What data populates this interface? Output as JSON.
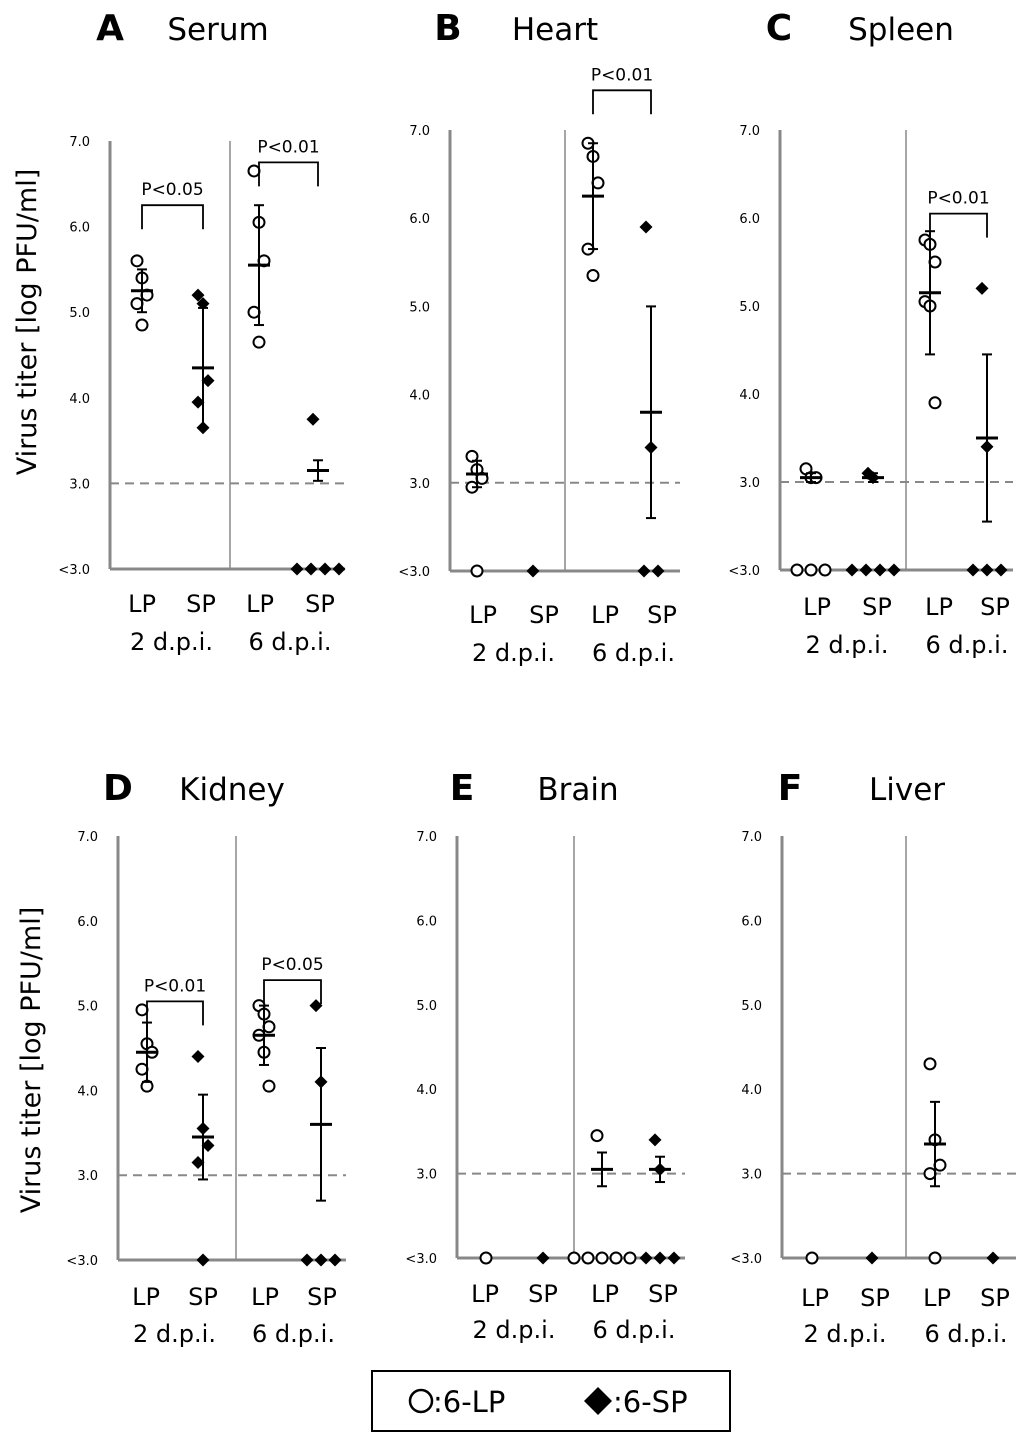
{
  "figure": {
    "y_axis_label": "Virus titer [log PFU/ml]",
    "legend": {
      "lp_label": ":6-LP",
      "sp_label": ":6-SP"
    }
  },
  "chart_data": [
    {
      "type": "scatter",
      "letter": "A",
      "title": "Serum",
      "ylim": [
        2.0,
        7.0
      ],
      "yticks": [
        "7.0",
        "6.0",
        "5.0",
        "4.0",
        "3.0",
        "<3.0"
      ],
      "detection_limit": 3.0,
      "group_labels": [
        "LP",
        "SP",
        "LP",
        "SP"
      ],
      "timepoint_labels": [
        "2 d.p.i.",
        "6 d.p.i."
      ],
      "groups": [
        {
          "series": "6-LP",
          "timepoint": "2 d.p.i.",
          "values": [
            5.6,
            5.4,
            5.2,
            5.1,
            4.85
          ],
          "mean": 5.25,
          "sd": 0.25
        },
        {
          "series": "6-SP",
          "timepoint": "2 d.p.i.",
          "values": [
            5.2,
            5.1,
            4.2,
            3.95,
            3.65
          ],
          "mean": 4.35,
          "sd": 0.7
        },
        {
          "series": "6-LP",
          "timepoint": "6 d.p.i.",
          "values": [
            6.65,
            6.05,
            5.6,
            5.0,
            4.65
          ],
          "mean": 5.55,
          "sd": 0.7
        },
        {
          "series": "6-SP",
          "timepoint": "6 d.p.i.",
          "values": [
            3.75,
            2.0,
            2.0,
            2.0,
            2.0
          ],
          "mean": 3.15,
          "sd": 0.12
        }
      ],
      "comparisons": [
        {
          "label": "P<0.05",
          "between": [
            0,
            1
          ],
          "height": 6.25
        },
        {
          "label": "P<0.01",
          "between": [
            2,
            3
          ],
          "height": 6.75
        }
      ]
    },
    {
      "type": "scatter",
      "letter": "B",
      "title": "Heart",
      "ylim": [
        2.0,
        7.0
      ],
      "yticks": [
        "7.0",
        "6.0",
        "5.0",
        "4.0",
        "3.0",
        "<3.0"
      ],
      "detection_limit": 3.0,
      "group_labels": [
        "LP",
        "SP",
        "LP",
        "SP"
      ],
      "timepoint_labels": [
        "2 d.p.i.",
        "6 d.p.i."
      ],
      "groups": [
        {
          "series": "6-LP",
          "timepoint": "2 d.p.i.",
          "values": [
            3.3,
            3.15,
            3.05,
            2.95,
            2.0
          ],
          "mean": 3.1,
          "sd": 0.15
        },
        {
          "series": "6-SP",
          "timepoint": "2 d.p.i.",
          "values": [
            2.0
          ],
          "mean": null,
          "sd": null
        },
        {
          "series": "6-LP",
          "timepoint": "6 d.p.i.",
          "values": [
            6.85,
            6.7,
            6.4,
            5.65,
            5.35
          ],
          "mean": 6.25,
          "sd": 0.6
        },
        {
          "series": "6-SP",
          "timepoint": "6 d.p.i.",
          "values": [
            5.9,
            3.4,
            2.0,
            2.0
          ],
          "mean": 3.8,
          "sd": 1.2
        }
      ],
      "comparisons": [
        {
          "label": "P<0.01",
          "between": [
            2,
            3
          ],
          "height": 7.45
        }
      ]
    },
    {
      "type": "scatter",
      "letter": "C",
      "title": "Spleen",
      "ylim": [
        2.0,
        7.0
      ],
      "yticks": [
        "7.0",
        "6.0",
        "5.0",
        "4.0",
        "3.0",
        "<3.0"
      ],
      "detection_limit": 3.0,
      "group_labels": [
        "LP",
        "SP",
        "LP",
        "SP"
      ],
      "timepoint_labels": [
        "2 d.p.i.",
        "6 d.p.i."
      ],
      "groups": [
        {
          "series": "6-LP",
          "timepoint": "2 d.p.i.",
          "values": [
            3.15,
            3.05,
            3.05,
            2.0,
            2.0,
            2.0
          ],
          "mean": 3.05,
          "sd": 0.05
        },
        {
          "series": "6-SP",
          "timepoint": "2 d.p.i.",
          "values": [
            3.1,
            3.05,
            2.0,
            2.0,
            2.0,
            2.0
          ],
          "mean": 3.05,
          "sd": 0.05
        },
        {
          "series": "6-LP",
          "timepoint": "6 d.p.i.",
          "values": [
            5.75,
            5.7,
            5.5,
            5.05,
            5.0,
            3.9
          ],
          "mean": 5.15,
          "sd": 0.7
        },
        {
          "series": "6-SP",
          "timepoint": "6 d.p.i.",
          "values": [
            5.2,
            3.4,
            2.0,
            2.0,
            2.0
          ],
          "mean": 3.5,
          "sd": 0.95
        }
      ],
      "comparisons": [
        {
          "label": "P<0.01",
          "between": [
            2,
            3
          ],
          "height": 6.05
        }
      ]
    },
    {
      "type": "scatter",
      "letter": "D",
      "title": "Kidney",
      "ylim": [
        2.0,
        7.0
      ],
      "yticks": [
        "7.0",
        "6.0",
        "5.0",
        "4.0",
        "3.0",
        "<3.0"
      ],
      "detection_limit": 3.0,
      "group_labels": [
        "LP",
        "SP",
        "LP",
        "SP"
      ],
      "timepoint_labels": [
        "2 d.p.i.",
        "6 d.p.i."
      ],
      "groups": [
        {
          "series": "6-LP",
          "timepoint": "2 d.p.i.",
          "values": [
            4.95,
            4.55,
            4.45,
            4.25,
            4.05
          ],
          "mean": 4.45,
          "sd": 0.35
        },
        {
          "series": "6-SP",
          "timepoint": "2 d.p.i.",
          "values": [
            4.4,
            3.55,
            3.35,
            3.15,
            2.0
          ],
          "mean": 3.45,
          "sd": 0.5
        },
        {
          "series": "6-LP",
          "timepoint": "6 d.p.i.",
          "values": [
            5.0,
            4.9,
            4.75,
            4.65,
            4.45,
            4.05
          ],
          "mean": 4.65,
          "sd": 0.35
        },
        {
          "series": "6-SP",
          "timepoint": "6 d.p.i.",
          "values": [
            5.0,
            4.1,
            2.0,
            2.0,
            2.0
          ],
          "mean": 3.6,
          "sd": 0.9
        }
      ],
      "comparisons": [
        {
          "label": "P<0.01",
          "between": [
            0,
            1
          ],
          "height": 5.05
        },
        {
          "label": "P<0.05",
          "between": [
            2,
            3
          ],
          "height": 5.3
        }
      ]
    },
    {
      "type": "scatter",
      "letter": "E",
      "title": "Brain",
      "ylim": [
        2.0,
        7.0
      ],
      "yticks": [
        "7.0",
        "6.0",
        "5.0",
        "4.0",
        "3.0",
        "<3.0"
      ],
      "detection_limit": 3.0,
      "group_labels": [
        "LP",
        "SP",
        "LP",
        "SP"
      ],
      "timepoint_labels": [
        "2 d.p.i.",
        "6 d.p.i."
      ],
      "groups": [
        {
          "series": "6-LP",
          "timepoint": "2 d.p.i.",
          "values": [
            2.0
          ],
          "mean": null,
          "sd": null
        },
        {
          "series": "6-SP",
          "timepoint": "2 d.p.i.",
          "values": [
            2.0
          ],
          "mean": null,
          "sd": null
        },
        {
          "series": "6-LP",
          "timepoint": "6 d.p.i.",
          "values": [
            3.45,
            2.0,
            2.0,
            2.0,
            2.0,
            2.0
          ],
          "mean": 3.05,
          "sd": 0.2
        },
        {
          "series": "6-SP",
          "timepoint": "6 d.p.i.",
          "values": [
            3.4,
            3.05,
            2.0,
            2.0,
            2.0
          ],
          "mean": 3.05,
          "sd": 0.15
        }
      ],
      "comparisons": []
    },
    {
      "type": "scatter",
      "letter": "F",
      "title": "Liver",
      "ylim": [
        2.0,
        7.0
      ],
      "yticks": [
        "7.0",
        "6.0",
        "5.0",
        "4.0",
        "3.0",
        "<3.0"
      ],
      "detection_limit": 3.0,
      "group_labels": [
        "LP",
        "SP",
        "LP",
        "SP"
      ],
      "timepoint_labels": [
        "2 d.p.i.",
        "6 d.p.i."
      ],
      "groups": [
        {
          "series": "6-LP",
          "timepoint": "2 d.p.i.",
          "values": [
            2.0
          ],
          "mean": null,
          "sd": null
        },
        {
          "series": "6-SP",
          "timepoint": "2 d.p.i.",
          "values": [
            2.0
          ],
          "mean": null,
          "sd": null
        },
        {
          "series": "6-LP",
          "timepoint": "6 d.p.i.",
          "values": [
            4.3,
            3.4,
            3.1,
            3.0,
            2.0
          ],
          "mean": 3.35,
          "sd": 0.5
        },
        {
          "series": "6-SP",
          "timepoint": "6 d.p.i.",
          "values": [
            2.0
          ],
          "mean": null,
          "sd": null
        }
      ],
      "comparisons": []
    }
  ]
}
